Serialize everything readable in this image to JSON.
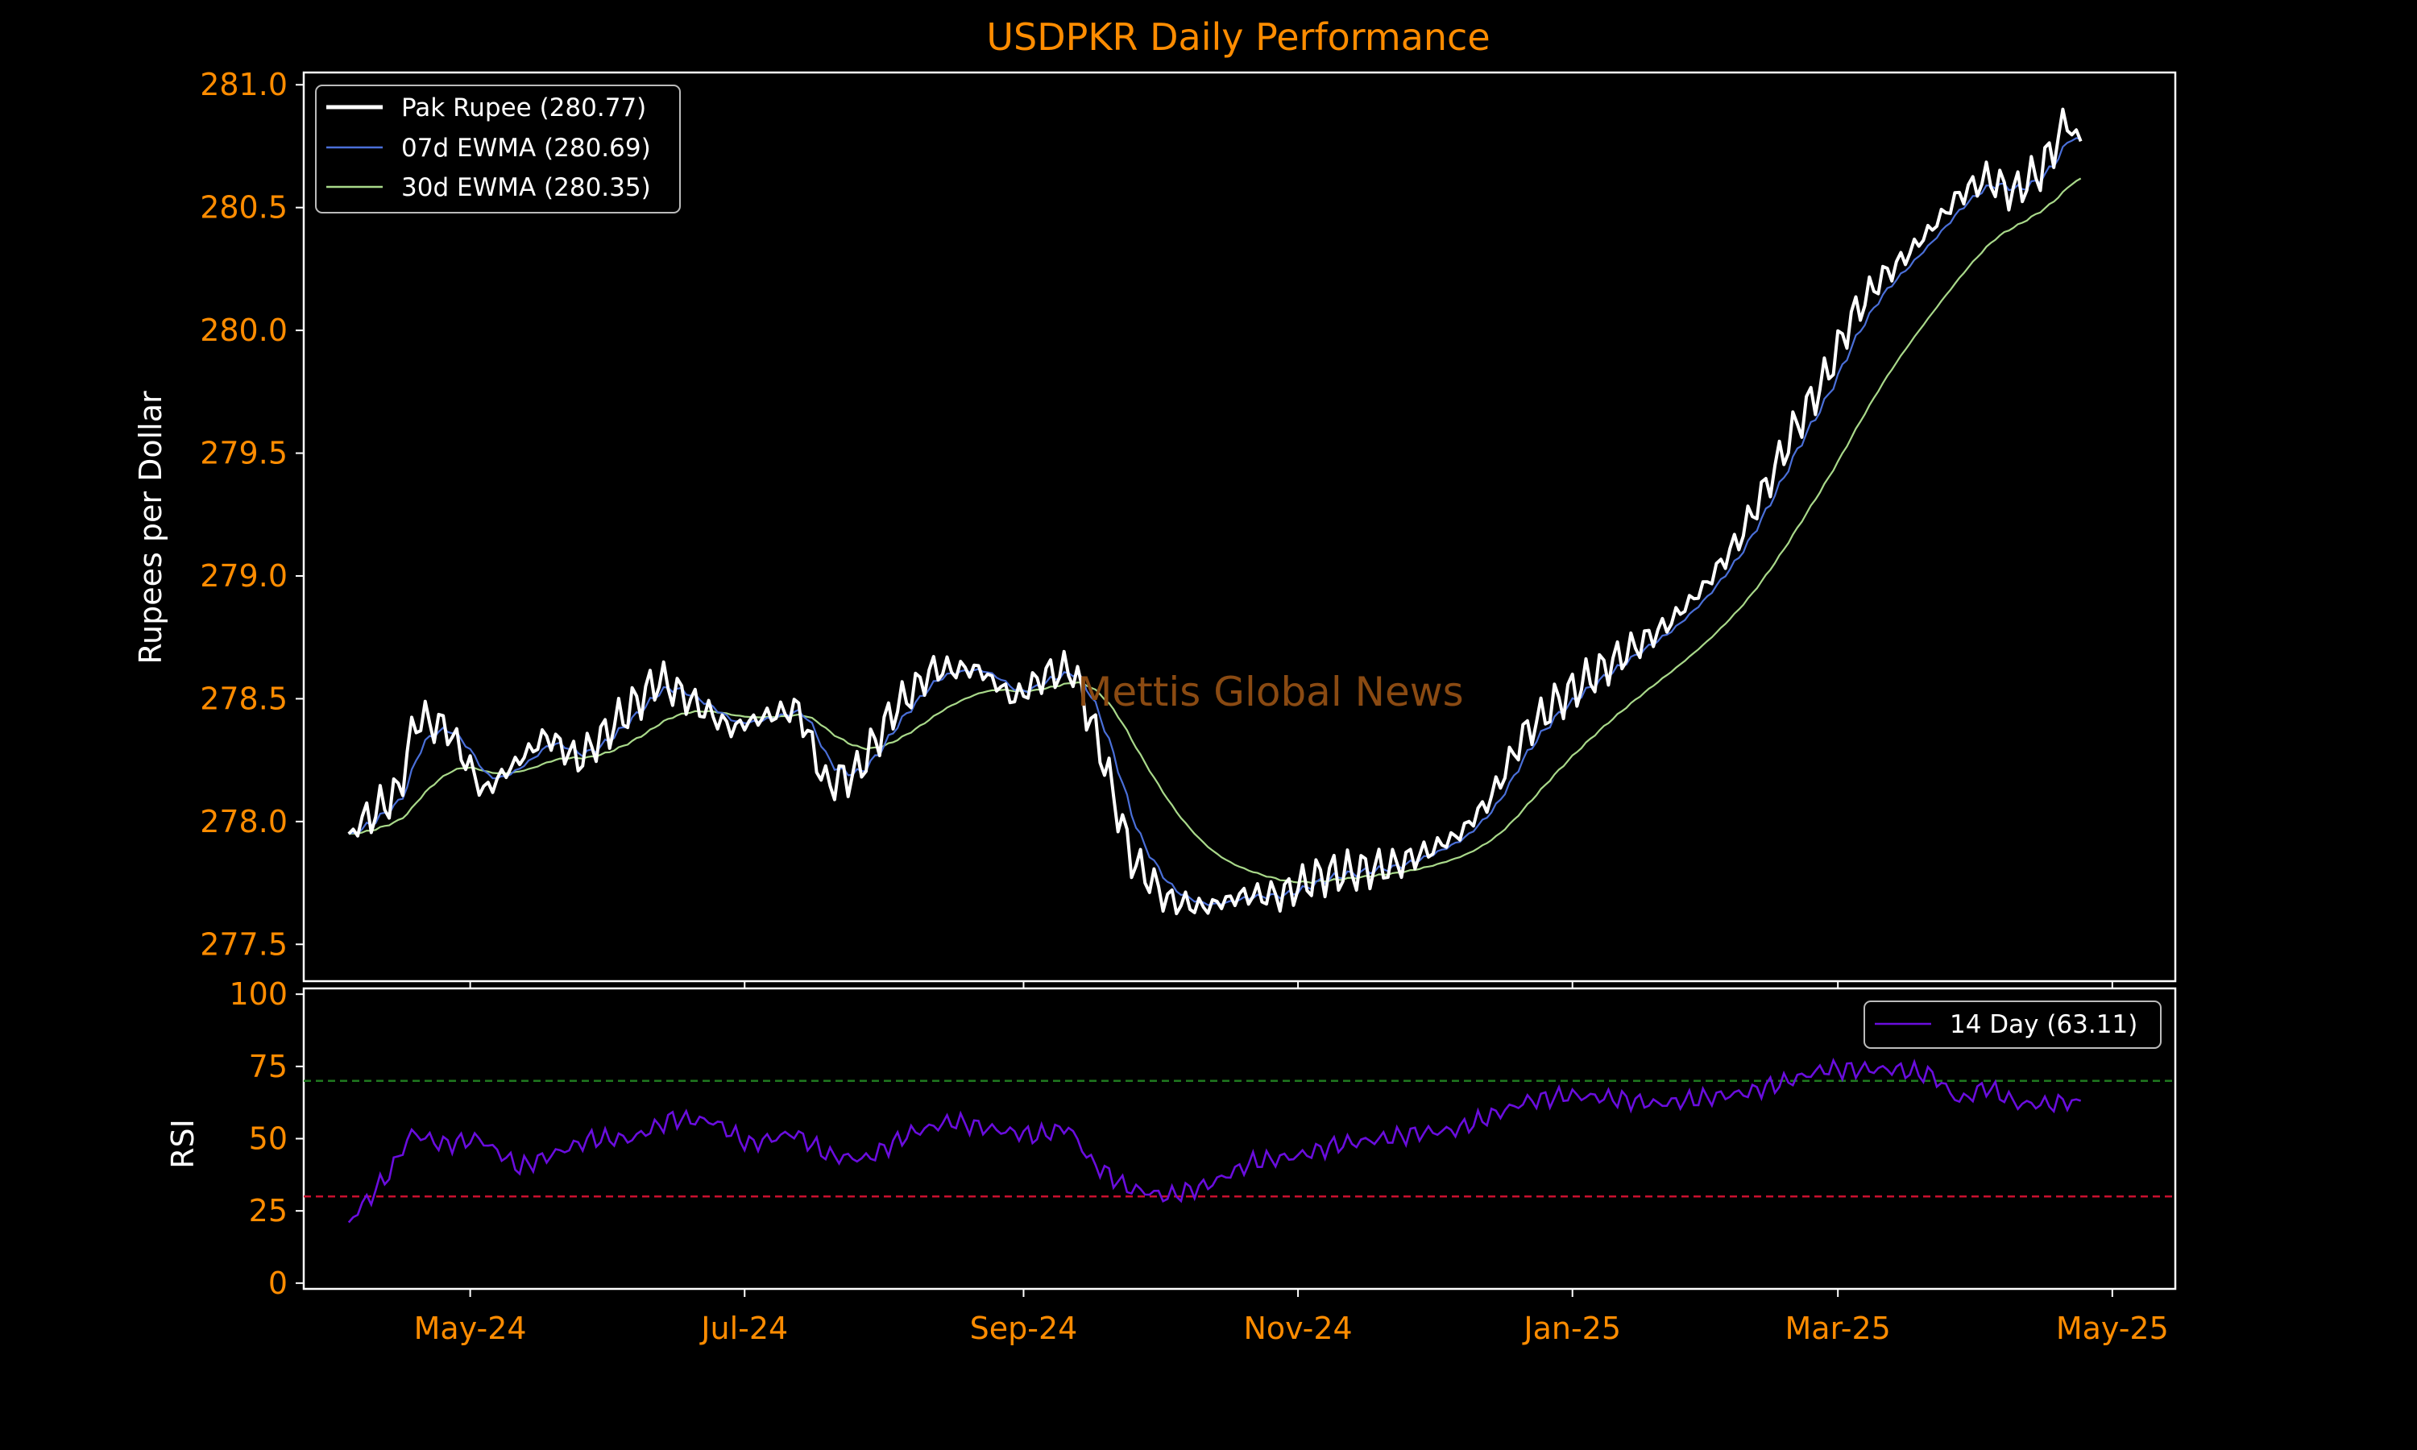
{
  "chart_data": {
    "title": "USDPKR Daily Performance",
    "watermark": "Mettis Global News",
    "x_axis": {
      "start": "2024-04-04",
      "end": "2025-04-24",
      "range": [
        "2024-03-25",
        "2025-05-15"
      ],
      "tick_labels": [
        "May-24",
        "Jul-24",
        "Sep-24",
        "Nov-24",
        "Jan-25",
        "Mar-25",
        "May-25"
      ],
      "tick_dates": [
        "2024-05-01",
        "2024-07-01",
        "2024-09-01",
        "2024-11-01",
        "2025-01-01",
        "2025-03-01",
        "2025-05-01"
      ]
    },
    "price_panel": {
      "type": "line",
      "ylabel": "Rupees per Dollar",
      "ylim": [
        277.35,
        281.05
      ],
      "yticks": [
        "277.5",
        "278.0",
        "278.5",
        "279.0",
        "279.5",
        "280.0",
        "280.5",
        "281.0"
      ],
      "legend_position": "top-left",
      "series": [
        {
          "name": "Pak Rupee (280.77)",
          "color": "#ffffff",
          "role": "price",
          "anchors": [
            [
              "2024-04-04",
              277.95
            ],
            [
              "2024-04-15",
              278.12
            ],
            [
              "2024-04-19",
              278.42
            ],
            [
              "2024-04-26",
              278.38
            ],
            [
              "2024-05-04",
              278.12
            ],
            [
              "2024-05-10",
              278.22
            ],
            [
              "2024-05-18",
              278.35
            ],
            [
              "2024-05-25",
              278.25
            ],
            [
              "2024-06-05",
              278.45
            ],
            [
              "2024-06-12",
              278.58
            ],
            [
              "2024-06-20",
              278.48
            ],
            [
              "2024-06-28",
              278.38
            ],
            [
              "2024-07-06",
              278.43
            ],
            [
              "2024-07-13",
              278.46
            ],
            [
              "2024-07-19",
              278.15
            ],
            [
              "2024-07-26",
              278.2
            ],
            [
              "2024-08-03",
              278.45
            ],
            [
              "2024-08-12",
              278.62
            ],
            [
              "2024-08-22",
              278.62
            ],
            [
              "2024-08-30",
              278.5
            ],
            [
              "2024-09-06",
              278.6
            ],
            [
              "2024-09-12",
              278.62
            ],
            [
              "2024-09-18",
              278.3
            ],
            [
              "2024-09-25",
              277.85
            ],
            [
              "2024-10-03",
              277.68
            ],
            [
              "2024-10-11",
              277.65
            ],
            [
              "2024-10-20",
              277.7
            ],
            [
              "2024-10-28",
              277.7
            ],
            [
              "2024-11-06",
              277.78
            ],
            [
              "2024-11-14",
              277.8
            ],
            [
              "2024-11-22",
              277.82
            ],
            [
              "2024-11-30",
              277.88
            ],
            [
              "2024-12-07",
              277.95
            ],
            [
              "2024-12-14",
              278.1
            ],
            [
              "2024-12-21",
              278.35
            ],
            [
              "2024-12-28",
              278.48
            ],
            [
              "2025-01-06",
              278.6
            ],
            [
              "2025-01-14",
              278.7
            ],
            [
              "2025-01-22",
              278.8
            ],
            [
              "2025-01-30",
              278.95
            ],
            [
              "2025-02-07",
              279.15
            ],
            [
              "2025-02-14",
              279.4
            ],
            [
              "2025-02-20",
              279.62
            ],
            [
              "2025-02-26",
              279.8
            ],
            [
              "2025-03-04",
              280.05
            ],
            [
              "2025-03-10",
              280.2
            ],
            [
              "2025-03-16",
              280.3
            ],
            [
              "2025-03-22",
              280.42
            ],
            [
              "2025-03-28",
              280.55
            ],
            [
              "2025-04-03",
              280.62
            ],
            [
              "2025-04-09",
              280.56
            ],
            [
              "2025-04-15",
              280.65
            ],
            [
              "2025-04-21",
              280.85
            ],
            [
              "2025-04-24",
              280.77
            ]
          ]
        },
        {
          "name": "07d EWMA (280.69)",
          "color": "#4a6fd8",
          "role": "ewma",
          "span": 7
        },
        {
          "name": "30d EWMA (280.35)",
          "color": "#a9d98a",
          "role": "ewma",
          "span": 30
        }
      ]
    },
    "rsi_panel": {
      "type": "line",
      "ylabel": "RSI",
      "ylim": [
        -2,
        102
      ],
      "yticks": [
        "0",
        "25",
        "50",
        "75",
        "100"
      ],
      "legend_position": "top-right",
      "overbought": 70,
      "oversold": 30,
      "overbought_color": "#1f7a1f",
      "oversold_color": "#c8102e",
      "series": [
        {
          "name": "14 Day (63.11)",
          "color": "#6a0dde",
          "anchors": [
            [
              "2024-04-04",
              21
            ],
            [
              "2024-04-13",
              38
            ],
            [
              "2024-04-18",
              52
            ],
            [
              "2024-04-25",
              48
            ],
            [
              "2024-05-03",
              50
            ],
            [
              "2024-05-12",
              40
            ],
            [
              "2024-05-20",
              45
            ],
            [
              "2024-05-28",
              50
            ],
            [
              "2024-06-06",
              50
            ],
            [
              "2024-06-15",
              57
            ],
            [
              "2024-06-24",
              56
            ],
            [
              "2024-07-02",
              48
            ],
            [
              "2024-07-12",
              52
            ],
            [
              "2024-07-20",
              44
            ],
            [
              "2024-07-28",
              43
            ],
            [
              "2024-08-07",
              52
            ],
            [
              "2024-08-16",
              56
            ],
            [
              "2024-08-26",
              53
            ],
            [
              "2024-09-04",
              51
            ],
            [
              "2024-09-11",
              54
            ],
            [
              "2024-09-16",
              42
            ],
            [
              "2024-09-24",
              33
            ],
            [
              "2024-10-03",
              30
            ],
            [
              "2024-10-12",
              34
            ],
            [
              "2024-10-22",
              42
            ],
            [
              "2024-11-01",
              44
            ],
            [
              "2024-11-10",
              48
            ],
            [
              "2024-11-20",
              50
            ],
            [
              "2024-11-28",
              52
            ],
            [
              "2024-12-06",
              53
            ],
            [
              "2024-12-14",
              58
            ],
            [
              "2024-12-22",
              63
            ],
            [
              "2024-12-31",
              65
            ],
            [
              "2025-01-10",
              64
            ],
            [
              "2025-01-20",
              62
            ],
            [
              "2025-01-30",
              64
            ],
            [
              "2025-02-09",
              66
            ],
            [
              "2025-02-18",
              70
            ],
            [
              "2025-02-26",
              74
            ],
            [
              "2025-03-06",
              74
            ],
            [
              "2025-03-14",
              74
            ],
            [
              "2025-03-22",
              72
            ],
            [
              "2025-03-28",
              63
            ],
            [
              "2025-04-03",
              68
            ],
            [
              "2025-04-10",
              62
            ],
            [
              "2025-04-17",
              62
            ],
            [
              "2025-04-24",
              63.11
            ]
          ]
        }
      ]
    },
    "grid": false,
    "background": "#000000",
    "axis_color": "#ffffff",
    "tick_color": "#ff8c00"
  }
}
